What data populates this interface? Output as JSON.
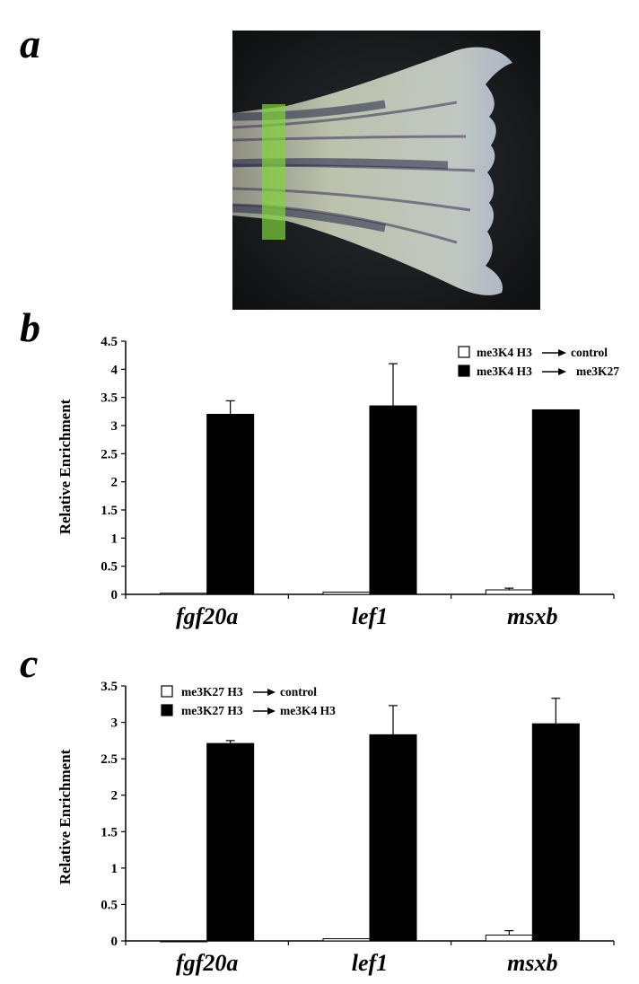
{
  "figure": {
    "panel_letters": [
      "a",
      "b",
      "c"
    ]
  },
  "photo": {
    "description_icon": "zebrafish-caudal-fin-photo",
    "highlight_color": "#7fd43a"
  },
  "colors": {
    "control": "#ffffff",
    "treatment": "#000000",
    "axis": "#000000"
  },
  "chart_data": [
    {
      "type": "bar",
      "panel": "b",
      "categories": [
        "fgf20a",
        "lef1",
        "msxb"
      ],
      "ylabel": "Relative Enrichment",
      "ylim": [
        0,
        4.5
      ],
      "yticks": [
        0,
        0.5,
        1,
        1.5,
        2,
        2.5,
        3,
        3.5,
        4,
        4.5
      ],
      "ytick_labels": [
        "0",
        "0.5",
        "1",
        "1.5",
        "2",
        "2.5",
        "3",
        "3.5",
        "4",
        "4.5"
      ],
      "legend_position": "top-right",
      "series": [
        {
          "name": "me3K4 H3 → control",
          "legend_left": "me3K4 H3",
          "legend_right": "control",
          "color": "#ffffff",
          "values": [
            0.02,
            0.04,
            0.08
          ],
          "errors": [
            0.0,
            0.0,
            0.03
          ]
        },
        {
          "name": "me3K4 H3 → me3K27",
          "legend_left": "me3K4 H3",
          "legend_right": "me3K27",
          "color": "#000000",
          "values": [
            3.2,
            3.35,
            3.28
          ],
          "errors": [
            0.24,
            0.75,
            0.0
          ]
        }
      ]
    },
    {
      "type": "bar",
      "panel": "c",
      "categories": [
        "fgf20a",
        "lef1",
        "msxb"
      ],
      "ylabel": "Relative Enrichment",
      "ylim": [
        0,
        3.5
      ],
      "yticks": [
        0,
        0.5,
        1,
        1.5,
        2,
        2.5,
        3,
        3.5
      ],
      "ytick_labels": [
        "0",
        "0.5",
        "1",
        "1.5",
        "2",
        "2.5",
        "3",
        "3.5"
      ],
      "legend_position": "top-left",
      "series": [
        {
          "name": "me3K27 H3 → control",
          "legend_left": "me3K27 H3",
          "legend_right": "control",
          "color": "#ffffff",
          "values": [
            0.0,
            0.03,
            0.08
          ],
          "errors": [
            0.0,
            0.0,
            0.06
          ]
        },
        {
          "name": "me3K27 H3 → me3K4 H3",
          "legend_left": "me3K27 H3",
          "legend_right": "me3K4  H3",
          "color": "#000000",
          "values": [
            2.71,
            2.83,
            2.98
          ],
          "errors": [
            0.04,
            0.4,
            0.35
          ]
        }
      ]
    }
  ]
}
